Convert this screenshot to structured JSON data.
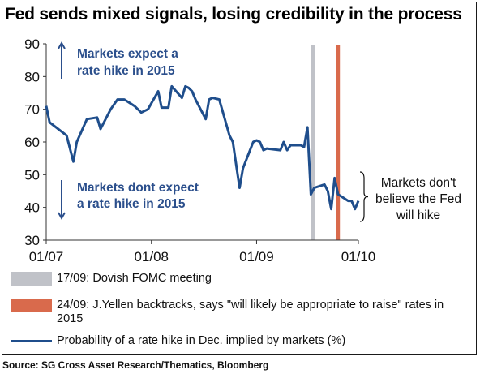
{
  "title": "Fed sends mixed signals, losing credibility in the process",
  "source": "Source: SG Cross Asset Research/Thematics, Bloomberg",
  "annotations": {
    "upper": [
      "Markets expect a",
      "rate hike in 2015"
    ],
    "lower": [
      "Markets dont expect",
      "a rate hike in 2015"
    ],
    "right": [
      "Markets don't",
      "believe the Fed",
      "will hike"
    ]
  },
  "legend": [
    {
      "label": "17/09: Dovish FOMC meeting",
      "kind": "vline",
      "color": "#c0c2c8"
    },
    {
      "label": "24/09: J.Yellen backtracks, says \"will likely be appropriate to raise\" rates in 2015",
      "kind": "vline",
      "color": "#d96a4c"
    },
    {
      "label": "Probability of a rate hike in Dec. implied by markets (%)",
      "kind": "line",
      "color": "#1f4e8c"
    }
  ],
  "colors": {
    "series": "#1f4e8c",
    "annotation_text": "#2b4f8c",
    "fomc_line": "#c0c2c8",
    "yellen_line": "#d96a4c"
  },
  "chart_data": {
    "type": "line",
    "title": "Fed sends mixed signals, losing credibility in the process",
    "xlabel": "",
    "ylabel": "",
    "x_ticks": [
      "01/07",
      "01/08",
      "01/09",
      "01/10"
    ],
    "y_ticks": [
      30,
      40,
      50,
      60,
      70,
      80,
      90
    ],
    "ylim": [
      30,
      90
    ],
    "grid": false,
    "vertical_markers": [
      {
        "label": "17/09: Dovish FOMC meeting",
        "x": "2015-09-17"
      },
      {
        "label": "24/09: J.Yellen backtracks, says \"will likely be appropriate to raise\" rates in 2015",
        "x": "2015-09-24"
      }
    ],
    "series": [
      {
        "name": "Probability of a rate hike in Dec. implied by markets (%)",
        "x": [
          "2015-07-01",
          "2015-07-02",
          "2015-07-07",
          "2015-07-09",
          "2015-07-10",
          "2015-07-13",
          "2015-07-16",
          "2015-07-17",
          "2015-07-20",
          "2015-07-21",
          "2015-07-22",
          "2015-07-24",
          "2015-07-27",
          "2015-07-29",
          "2015-07-31",
          "2015-08-03",
          "2015-08-04",
          "2015-08-06",
          "2015-08-07",
          "2015-08-10",
          "2015-08-11",
          "2015-08-12",
          "2015-08-13",
          "2015-08-14",
          "2015-08-17",
          "2015-08-18",
          "2015-08-19",
          "2015-08-21",
          "2015-08-24",
          "2015-08-25",
          "2015-08-26",
          "2015-08-27",
          "2015-08-28",
          "2015-08-31",
          "2015-09-01",
          "2015-09-02",
          "2015-09-03",
          "2015-09-04",
          "2015-09-08",
          "2015-09-09",
          "2015-09-10",
          "2015-09-11",
          "2015-09-14",
          "2015-09-15",
          "2015-09-16",
          "2015-09-17",
          "2015-09-18",
          "2015-09-21",
          "2015-09-22",
          "2015-09-23",
          "2015-09-24",
          "2015-09-25",
          "2015-09-28",
          "2015-09-29",
          "2015-09-30",
          "2015-10-01"
        ],
        "y": [
          71,
          66,
          62,
          54,
          60,
          67,
          67.5,
          64,
          70,
          71.5,
          73,
          73,
          71,
          69,
          70,
          75.5,
          70.5,
          70.5,
          77,
          73.5,
          77,
          76.5,
          75.5,
          73,
          67,
          73,
          73.5,
          73,
          62,
          60,
          53,
          46,
          52,
          60,
          60.5,
          60,
          57.5,
          58,
          57.5,
          60,
          57.5,
          59,
          59,
          58.5,
          64.5,
          44,
          46,
          47,
          45,
          39.5,
          49,
          44,
          42,
          42,
          39.5,
          42
        ]
      }
    ]
  }
}
